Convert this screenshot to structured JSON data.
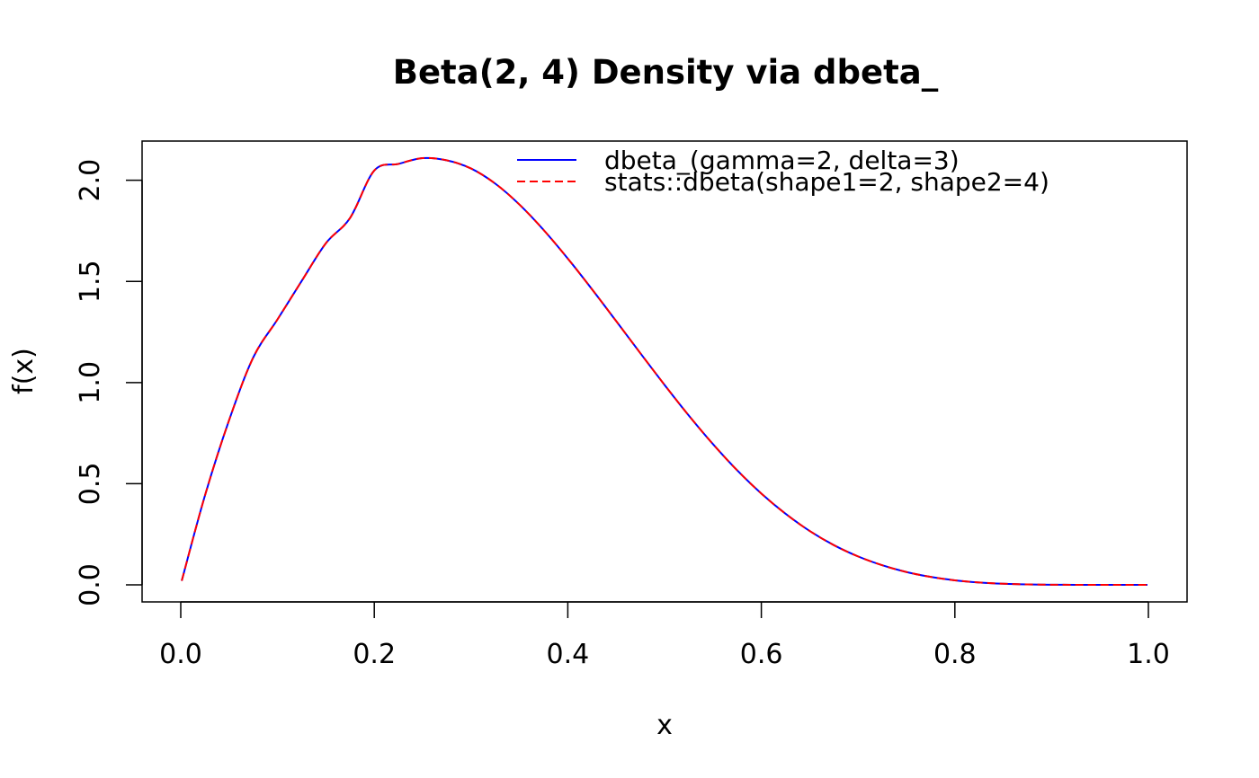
{
  "chart_data": {
    "type": "line",
    "title": "Beta(2, 4) Density via dbeta_",
    "xlabel": "x",
    "ylabel": "f(x)",
    "xlim": [
      0,
      1
    ],
    "ylim": [
      0,
      2.1094
    ],
    "x_ticks": [
      0,
      0.2,
      0.4,
      0.6,
      0.8,
      1
    ],
    "x_tick_labels": [
      "0.0",
      "0.2",
      "0.4",
      "0.6",
      "0.8",
      "1.0"
    ],
    "y_ticks": [
      0,
      0.5,
      1,
      1.5,
      2
    ],
    "y_tick_labels": [
      "0.0",
      "0.5",
      "1.0",
      "1.5",
      "2.0"
    ],
    "grid": false,
    "legend_position": "top-right",
    "x": [
      0.001,
      0.025,
      0.05,
      0.075,
      0.1,
      0.125,
      0.15,
      0.175,
      0.2,
      0.225,
      0.25,
      0.275,
      0.3,
      0.325,
      0.35,
      0.375,
      0.4,
      0.425,
      0.45,
      0.475,
      0.5,
      0.525,
      0.55,
      0.575,
      0.6,
      0.625,
      0.65,
      0.675,
      0.7,
      0.725,
      0.75,
      0.775,
      0.8,
      0.825,
      0.85,
      0.875,
      0.9,
      0.925,
      0.95,
      0.975,
      0.999
    ],
    "series": [
      {
        "name": "dbeta_(gamma=2, delta=3)",
        "color": "#0000ff",
        "style": "solid",
        "values": [
          0.0199,
          0.4412,
          0.8145,
          1.1247,
          1.3122,
          1.5023,
          1.6888,
          1.8139,
          2.048,
          2.0809,
          2.1094,
          2.0983,
          2.058,
          1.9834,
          1.8799,
          1.7542,
          1.6128,
          1.4611,
          1.3038,
          1.145,
          0.9883,
          0.8372,
          0.6957,
          0.5663,
          0.4514,
          0.3515,
          0.2663,
          0.1962,
          0.1404,
          0.0968,
          0.0634,
          0.0392,
          0.0224,
          0.0118,
          0.0056,
          0.0022,
          0.0007,
          0.0002,
          0.0,
          0.0,
          0.0
        ]
      },
      {
        "name": "stats::dbeta(shape1=2, shape2=4)",
        "color": "#ff0000",
        "style": "dashed",
        "values": [
          0.0199,
          0.4412,
          0.8145,
          1.1247,
          1.3122,
          1.5023,
          1.6888,
          1.8139,
          2.048,
          2.0809,
          2.1094,
          2.0983,
          2.058,
          1.9834,
          1.8799,
          1.7542,
          1.6128,
          1.4611,
          1.3038,
          1.145,
          0.9883,
          0.8372,
          0.6957,
          0.5663,
          0.4514,
          0.3515,
          0.2663,
          0.1962,
          0.1404,
          0.0968,
          0.0634,
          0.0392,
          0.0224,
          0.0118,
          0.0056,
          0.0022,
          0.0007,
          0.0002,
          0.0,
          0.0,
          0.0
        ]
      }
    ]
  }
}
